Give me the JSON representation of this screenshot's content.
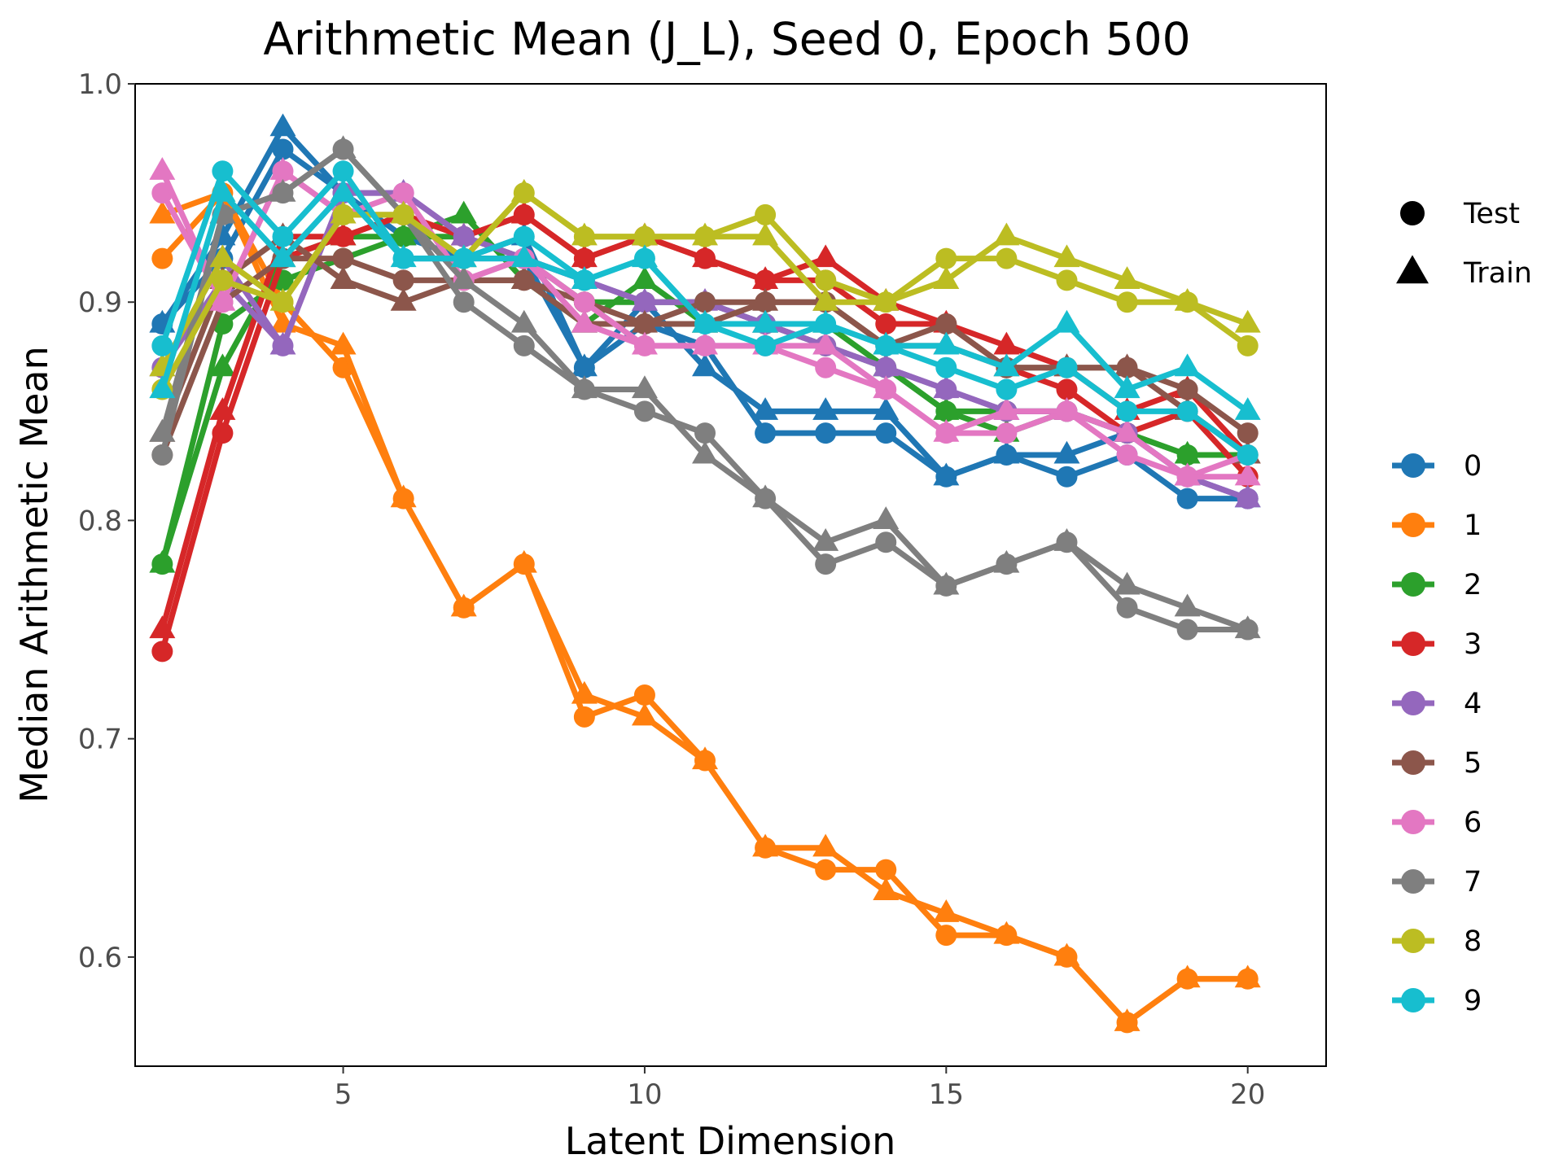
{
  "chart_data": {
    "type": "line",
    "title": "Arithmetic Mean (J_L),  Seed 0, Epoch 500",
    "xlabel": "Latent Dimension",
    "ylabel": "Median Arithmetic Mean",
    "xlim": [
      1.55,
      21.3
    ],
    "ylim": [
      0.55,
      1.0
    ],
    "x": [
      2,
      3,
      4,
      5,
      6,
      7,
      8,
      9,
      10,
      11,
      12,
      13,
      14,
      15,
      16,
      17,
      18,
      19,
      20
    ],
    "x_ticks": [
      5,
      10,
      15,
      20
    ],
    "x_tick_labels": [
      "5",
      "10",
      "15",
      "20"
    ],
    "y_ticks": [
      0.6,
      0.7,
      0.8,
      0.9,
      1.0
    ],
    "y_tick_labels": [
      "0.6",
      "0.7",
      "0.8",
      "0.9",
      "1.0"
    ],
    "grid": false,
    "legend_shape": {
      "position": "right",
      "entries": [
        {
          "label": "Test",
          "shape": "circle"
        },
        {
          "label": "Train",
          "shape": "triangle"
        }
      ]
    },
    "legend_color_position": "right",
    "series": [
      {
        "name": "0",
        "color": "#1f77b4",
        "test": [
          0.89,
          0.92,
          0.97,
          0.95,
          0.92,
          0.92,
          0.92,
          0.87,
          0.89,
          0.88,
          0.84,
          0.84,
          0.84,
          0.82,
          0.83,
          0.82,
          0.83,
          0.81,
          0.81
        ],
        "train": [
          0.89,
          0.93,
          0.98,
          0.95,
          0.93,
          0.92,
          0.93,
          0.87,
          0.9,
          0.87,
          0.85,
          0.85,
          0.85,
          0.82,
          0.83,
          0.83,
          0.84,
          0.82,
          0.81
        ]
      },
      {
        "name": "1",
        "color": "#ff7f0e",
        "test": [
          0.92,
          0.95,
          0.9,
          0.87,
          0.81,
          0.76,
          0.78,
          0.71,
          0.72,
          0.69,
          0.65,
          0.64,
          0.64,
          0.61,
          0.61,
          0.6,
          0.57,
          0.59,
          0.59
        ],
        "train": [
          0.94,
          0.95,
          0.89,
          0.88,
          0.81,
          0.76,
          0.78,
          0.72,
          0.71,
          0.69,
          0.65,
          0.65,
          0.63,
          0.62,
          0.61,
          0.6,
          0.57,
          0.59,
          0.59
        ]
      },
      {
        "name": "2",
        "color": "#2ca02c",
        "test": [
          0.78,
          0.89,
          0.91,
          0.92,
          0.93,
          0.93,
          0.92,
          0.9,
          0.9,
          0.9,
          0.89,
          0.88,
          0.87,
          0.85,
          0.85,
          0.85,
          0.84,
          0.83,
          0.83
        ],
        "train": [
          0.78,
          0.87,
          0.92,
          0.93,
          0.93,
          0.94,
          0.91,
          0.89,
          0.91,
          0.89,
          0.89,
          0.89,
          0.87,
          0.85,
          0.84,
          0.85,
          0.84,
          0.83,
          0.83
        ]
      },
      {
        "name": "3",
        "color": "#d62728",
        "test": [
          0.74,
          0.84,
          0.92,
          0.93,
          0.94,
          0.93,
          0.94,
          0.92,
          0.93,
          0.92,
          0.91,
          0.91,
          0.89,
          0.89,
          0.87,
          0.86,
          0.84,
          0.85,
          0.82
        ],
        "train": [
          0.75,
          0.85,
          0.93,
          0.93,
          0.94,
          0.93,
          0.94,
          0.92,
          0.93,
          0.92,
          0.91,
          0.92,
          0.9,
          0.89,
          0.88,
          0.87,
          0.85,
          0.86,
          0.83
        ]
      },
      {
        "name": "4",
        "color": "#9467bd",
        "test": [
          0.87,
          0.91,
          0.88,
          0.95,
          0.95,
          0.93,
          0.92,
          0.91,
          0.9,
          0.9,
          0.89,
          0.88,
          0.87,
          0.86,
          0.85,
          0.85,
          0.84,
          0.82,
          0.81
        ],
        "train": [
          0.87,
          0.92,
          0.88,
          0.95,
          0.95,
          0.93,
          0.92,
          0.91,
          0.9,
          0.9,
          0.89,
          0.88,
          0.87,
          0.86,
          0.85,
          0.85,
          0.84,
          0.82,
          0.81
        ]
      },
      {
        "name": "5",
        "color": "#8c564b",
        "test": [
          0.83,
          0.9,
          0.92,
          0.92,
          0.91,
          0.91,
          0.91,
          0.9,
          0.89,
          0.9,
          0.9,
          0.9,
          0.88,
          0.89,
          0.87,
          0.87,
          0.87,
          0.86,
          0.84
        ],
        "train": [
          0.84,
          0.91,
          0.93,
          0.91,
          0.9,
          0.91,
          0.91,
          0.89,
          0.89,
          0.89,
          0.9,
          0.9,
          0.88,
          0.88,
          0.87,
          0.87,
          0.87,
          0.85,
          0.83
        ]
      },
      {
        "name": "6",
        "color": "#e377c2",
        "test": [
          0.95,
          0.9,
          0.96,
          0.94,
          0.95,
          0.91,
          0.92,
          0.9,
          0.88,
          0.88,
          0.88,
          0.87,
          0.86,
          0.84,
          0.84,
          0.85,
          0.83,
          0.82,
          0.83
        ],
        "train": [
          0.96,
          0.9,
          0.96,
          0.94,
          0.94,
          0.91,
          0.92,
          0.89,
          0.88,
          0.88,
          0.88,
          0.88,
          0.86,
          0.84,
          0.85,
          0.85,
          0.84,
          0.82,
          0.82
        ]
      },
      {
        "name": "7",
        "color": "#7f7f7f",
        "test": [
          0.83,
          0.94,
          0.95,
          0.97,
          0.94,
          0.9,
          0.88,
          0.86,
          0.85,
          0.84,
          0.81,
          0.78,
          0.79,
          0.77,
          0.78,
          0.79,
          0.76,
          0.75,
          0.75
        ],
        "train": [
          0.84,
          0.94,
          0.95,
          0.97,
          0.94,
          0.91,
          0.89,
          0.86,
          0.86,
          0.83,
          0.81,
          0.79,
          0.8,
          0.77,
          0.78,
          0.79,
          0.77,
          0.76,
          0.75
        ]
      },
      {
        "name": "8",
        "color": "#bcbd22",
        "test": [
          0.86,
          0.91,
          0.9,
          0.94,
          0.94,
          0.92,
          0.95,
          0.93,
          0.93,
          0.93,
          0.94,
          0.91,
          0.9,
          0.92,
          0.92,
          0.91,
          0.9,
          0.9,
          0.88
        ],
        "train": [
          0.87,
          0.92,
          0.9,
          0.94,
          0.94,
          0.92,
          0.95,
          0.93,
          0.93,
          0.93,
          0.93,
          0.9,
          0.9,
          0.91,
          0.93,
          0.92,
          0.91,
          0.9,
          0.89
        ]
      },
      {
        "name": "9",
        "color": "#17becf",
        "test": [
          0.88,
          0.96,
          0.93,
          0.96,
          0.92,
          0.92,
          0.93,
          0.91,
          0.92,
          0.89,
          0.88,
          0.89,
          0.88,
          0.87,
          0.86,
          0.87,
          0.85,
          0.85,
          0.83
        ],
        "train": [
          0.86,
          0.95,
          0.92,
          0.95,
          0.92,
          0.92,
          0.92,
          0.91,
          0.92,
          0.89,
          0.89,
          0.89,
          0.88,
          0.88,
          0.87,
          0.89,
          0.86,
          0.87,
          0.85
        ]
      }
    ]
  }
}
